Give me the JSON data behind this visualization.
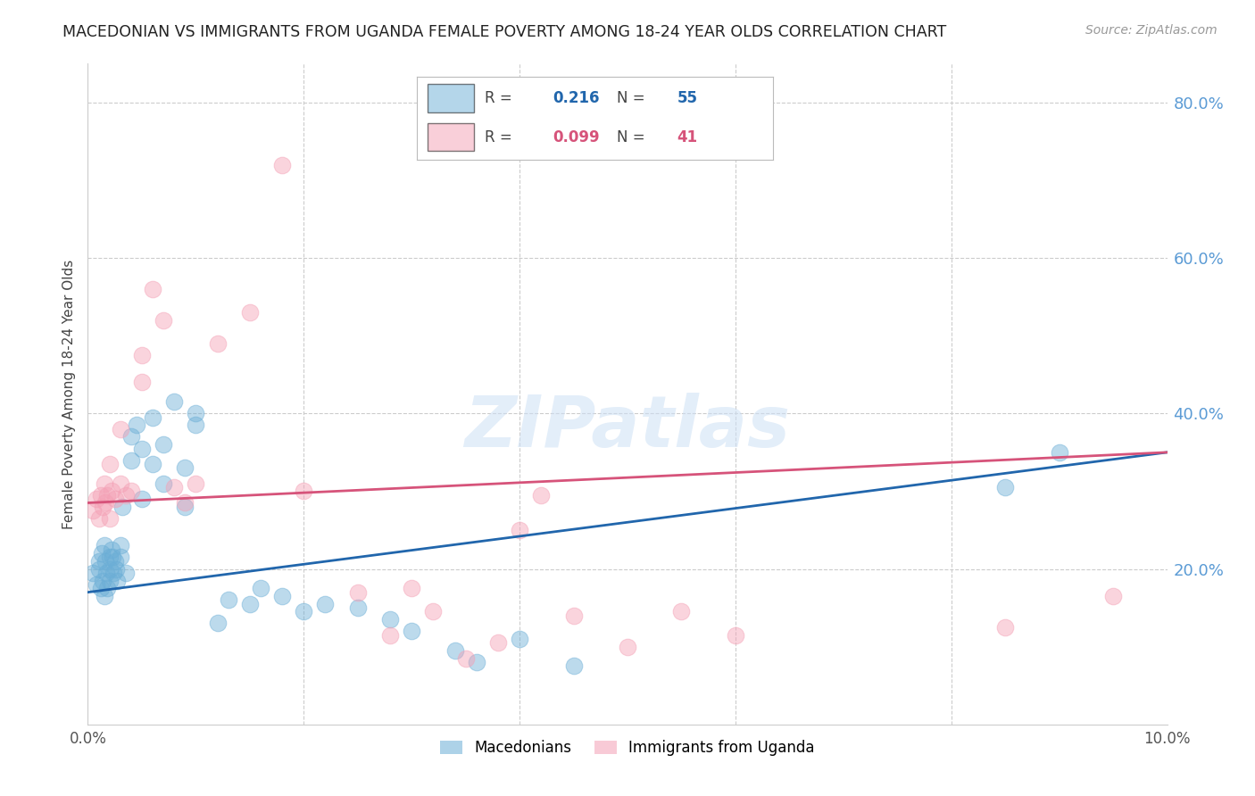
{
  "title": "MACEDONIAN VS IMMIGRANTS FROM UGANDA FEMALE POVERTY AMONG 18-24 YEAR OLDS CORRELATION CHART",
  "source": "Source: ZipAtlas.com",
  "ylabel": "Female Poverty Among 18-24 Year Olds",
  "xlim": [
    0.0,
    0.1
  ],
  "ylim": [
    0.0,
    0.85
  ],
  "y_ticks_right": [
    0.2,
    0.4,
    0.6,
    0.8
  ],
  "y_tick_right_labels": [
    "20.0%",
    "40.0%",
    "60.0%",
    "80.0%"
  ],
  "macedonian_color": "#6baed6",
  "uganda_color": "#f4a0b5",
  "macedonian_line_color": "#2166ac",
  "uganda_line_color": "#d6537a",
  "R_macedonian": 0.216,
  "N_macedonian": 55,
  "R_uganda": 0.099,
  "N_uganda": 41,
  "legend_label_macedonian": "Macedonians",
  "legend_label_uganda": "Immigrants from Uganda",
  "watermark": "ZIPatlas",
  "macedonian_x": [
    0.0005,
    0.0008,
    0.001,
    0.001,
    0.0012,
    0.0013,
    0.0014,
    0.0015,
    0.0015,
    0.0016,
    0.0017,
    0.0018,
    0.002,
    0.002,
    0.002,
    0.0022,
    0.0023,
    0.0024,
    0.0025,
    0.0026,
    0.0027,
    0.003,
    0.003,
    0.0032,
    0.0035,
    0.004,
    0.004,
    0.0045,
    0.005,
    0.005,
    0.006,
    0.006,
    0.007,
    0.007,
    0.008,
    0.009,
    0.009,
    0.01,
    0.01,
    0.012,
    0.013,
    0.015,
    0.016,
    0.018,
    0.02,
    0.022,
    0.025,
    0.028,
    0.03,
    0.034,
    0.036,
    0.04,
    0.045,
    0.085,
    0.09
  ],
  "macedonian_y": [
    0.195,
    0.18,
    0.2,
    0.21,
    0.175,
    0.22,
    0.185,
    0.165,
    0.23,
    0.21,
    0.195,
    0.175,
    0.2,
    0.215,
    0.185,
    0.225,
    0.215,
    0.195,
    0.21,
    0.2,
    0.185,
    0.23,
    0.215,
    0.28,
    0.195,
    0.37,
    0.34,
    0.385,
    0.355,
    0.29,
    0.395,
    0.335,
    0.36,
    0.31,
    0.415,
    0.28,
    0.33,
    0.385,
    0.4,
    0.13,
    0.16,
    0.155,
    0.175,
    0.165,
    0.145,
    0.155,
    0.15,
    0.135,
    0.12,
    0.095,
    0.08,
    0.11,
    0.075,
    0.305,
    0.35
  ],
  "uganda_x": [
    0.0005,
    0.0008,
    0.001,
    0.0012,
    0.0014,
    0.0015,
    0.0016,
    0.0018,
    0.002,
    0.002,
    0.0022,
    0.0025,
    0.003,
    0.003,
    0.0035,
    0.004,
    0.005,
    0.005,
    0.006,
    0.007,
    0.008,
    0.009,
    0.01,
    0.012,
    0.015,
    0.018,
    0.02,
    0.025,
    0.028,
    0.03,
    0.032,
    0.035,
    0.038,
    0.04,
    0.042,
    0.045,
    0.05,
    0.055,
    0.06,
    0.085,
    0.095
  ],
  "uganda_y": [
    0.275,
    0.29,
    0.265,
    0.295,
    0.28,
    0.31,
    0.285,
    0.295,
    0.265,
    0.335,
    0.3,
    0.29,
    0.31,
    0.38,
    0.295,
    0.3,
    0.475,
    0.44,
    0.56,
    0.52,
    0.305,
    0.285,
    0.31,
    0.49,
    0.53,
    0.72,
    0.3,
    0.17,
    0.115,
    0.175,
    0.145,
    0.085,
    0.105,
    0.25,
    0.295,
    0.14,
    0.1,
    0.145,
    0.115,
    0.125,
    0.165
  ]
}
